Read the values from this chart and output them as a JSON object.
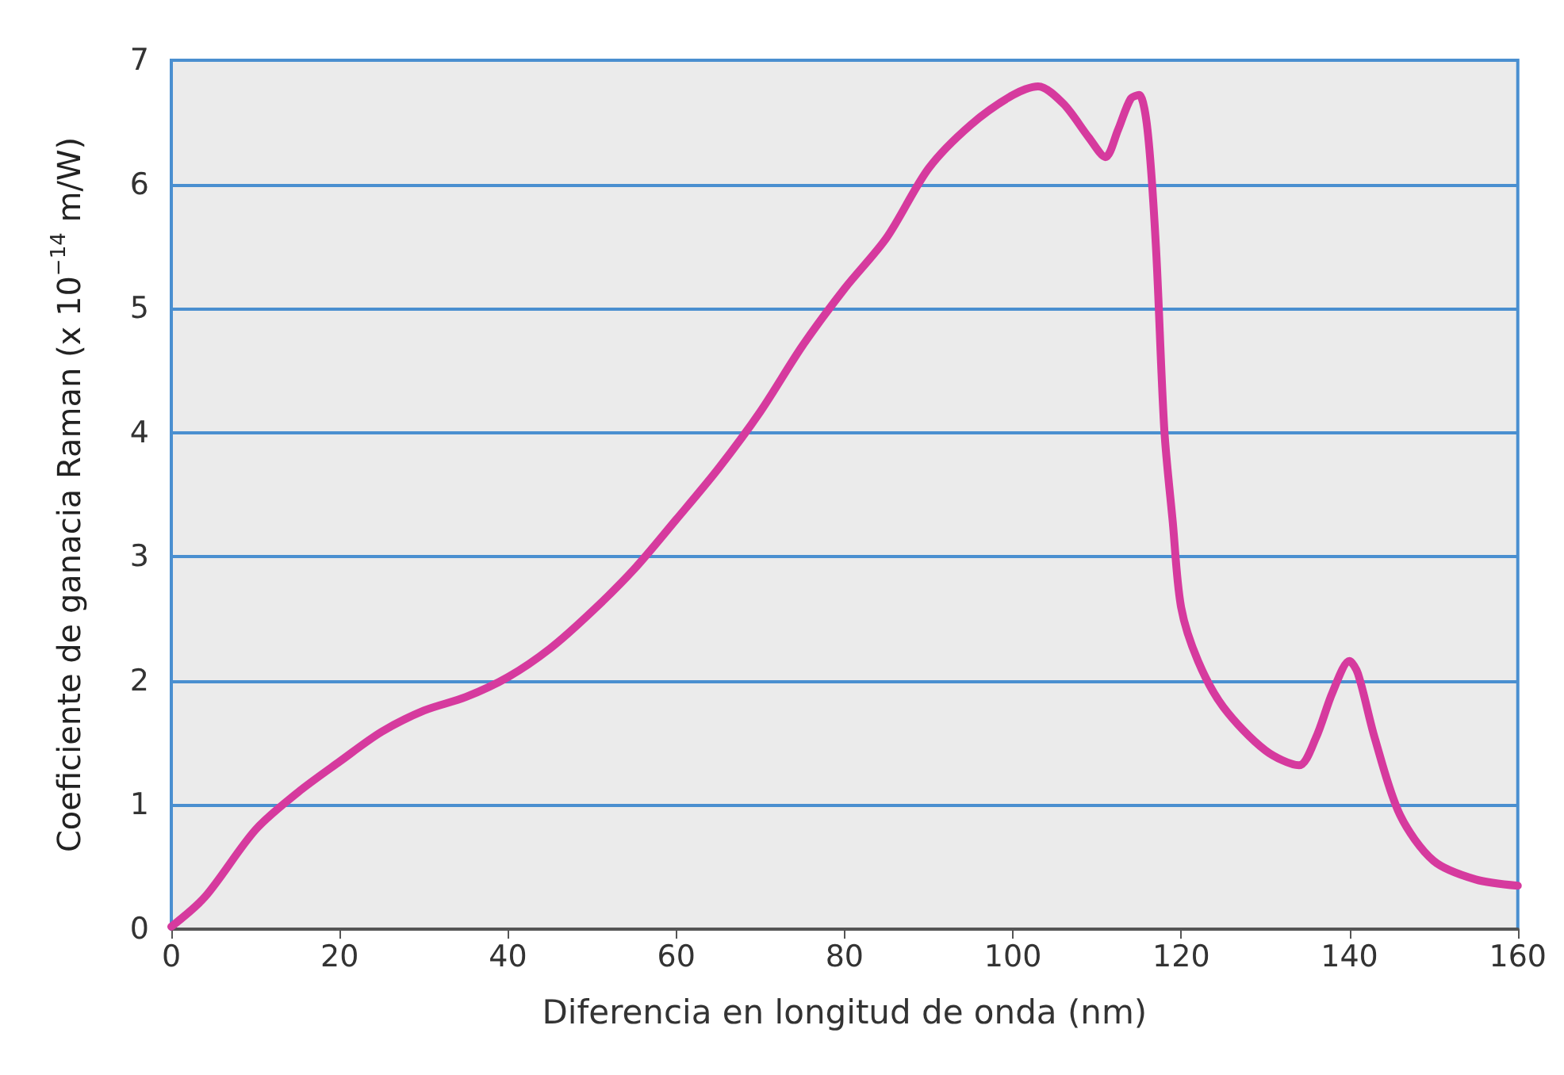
{
  "chart_data": {
    "type": "line",
    "xlabel": "Diferencia en longitud de onda (nm)",
    "ylabel": "Coeficiente de ganacia Raman (x 10$^{−14}$ m/W)",
    "xlim": [
      0,
      160
    ],
    "xticks": [
      0,
      20,
      40,
      60,
      80,
      100,
      120,
      140,
      160
    ],
    "ylim": [
      0,
      7
    ],
    "yticks": [
      0,
      1,
      2,
      3,
      4,
      5,
      6,
      7
    ],
    "grid": "y",
    "marker": "none",
    "line_style": "solid",
    "series": [
      {
        "color": "#d63a9e",
        "x": [
          0,
          4,
          10,
          15,
          20,
          25,
          30,
          35,
          40,
          45,
          50,
          55,
          60,
          65,
          70,
          75,
          80,
          85,
          90,
          95,
          100,
          103,
          106,
          109,
          111,
          112.5,
          114,
          115,
          116,
          117,
          118,
          119,
          120,
          122,
          125,
          130,
          134,
          136,
          138,
          140,
          141,
          143,
          146,
          150,
          155,
          160
        ],
        "values": [
          0.02,
          0.26,
          0.8,
          1.1,
          1.35,
          1.59,
          1.76,
          1.87,
          2.03,
          2.26,
          2.56,
          2.9,
          3.3,
          3.71,
          4.17,
          4.7,
          5.16,
          5.57,
          6.13,
          6.48,
          6.72,
          6.79,
          6.65,
          6.38,
          6.22,
          6.44,
          6.69,
          6.72,
          6.44,
          5.5,
          4.02,
          3.28,
          2.59,
          2.16,
          1.79,
          1.44,
          1.32,
          1.54,
          1.91,
          2.16,
          2.06,
          1.54,
          0.92,
          0.55,
          0.4,
          0.35
        ]
      }
    ]
  }
}
